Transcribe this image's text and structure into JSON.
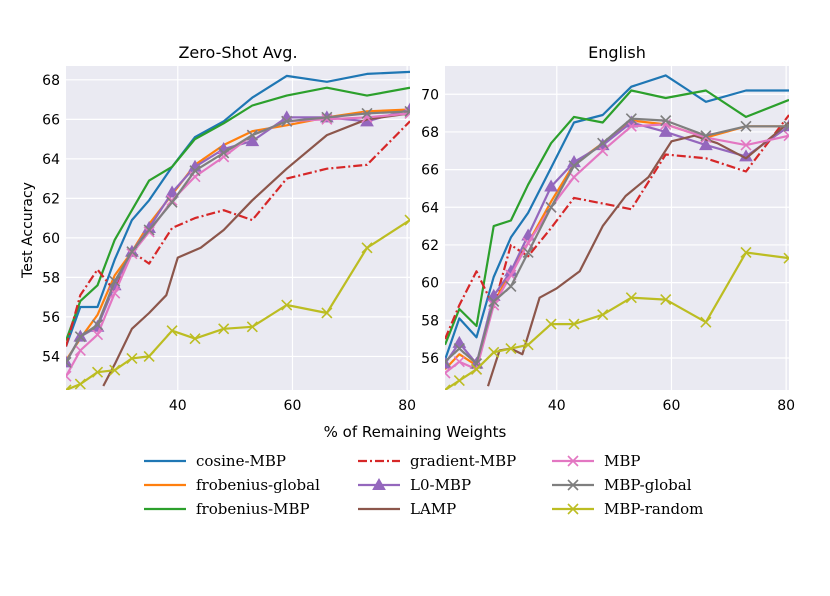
{
  "chart_data": [
    {
      "type": "line",
      "title": "Zero-Shot Avg.",
      "xlabel": "",
      "ylabel": "Test Accuracy",
      "xlim": [
        20.5,
        80.5
      ],
      "ylim": [
        52.3,
        68.7
      ],
      "xticks": [
        40,
        60,
        80
      ],
      "yticks": [
        54,
        56,
        58,
        60,
        62,
        64,
        66,
        68
      ],
      "grid": true,
      "series": [
        {
          "name": "cosine-MBP",
          "x": [
            20.5,
            23,
            26,
            29,
            32,
            35,
            39,
            43,
            48,
            53,
            59,
            66,
            73,
            80.5
          ],
          "values": [
            54.5,
            56.5,
            56.5,
            58.9,
            60.9,
            61.9,
            63.6,
            65.1,
            65.9,
            67.1,
            68.2,
            67.9,
            68.3,
            68.4
          ]
        },
        {
          "name": "frobenius-global",
          "x": [
            20.5,
            23,
            26,
            29,
            32,
            35,
            39,
            43,
            48,
            53,
            59,
            66,
            73,
            80.5
          ],
          "values": [
            53.8,
            54.9,
            56.1,
            58.1,
            59.3,
            60.7,
            62.2,
            63.7,
            64.7,
            65.4,
            65.7,
            66.1,
            66.4,
            66.5
          ]
        },
        {
          "name": "frobenius-MBP",
          "x": [
            20.5,
            23,
            26,
            29,
            32,
            35,
            39,
            43,
            48,
            53,
            59,
            66,
            73,
            80.5
          ],
          "values": [
            54.8,
            56.8,
            57.6,
            59.9,
            61.4,
            62.9,
            63.6,
            65.0,
            65.8,
            66.7,
            67.2,
            67.6,
            67.2,
            67.6
          ]
        },
        {
          "name": "gradient-MBP",
          "x": [
            20.5,
            23,
            26,
            29,
            32,
            35,
            39,
            43,
            48,
            53,
            59,
            66,
            73,
            80.5
          ],
          "values": [
            54.5,
            57.1,
            58.4,
            57.3,
            59.3,
            58.7,
            60.5,
            61.0,
            61.4,
            60.9,
            63.0,
            63.5,
            63.7,
            65.9
          ]
        },
        {
          "name": "L0-MBP",
          "x": [
            20.5,
            23,
            26,
            29,
            32,
            35,
            39,
            43,
            48,
            53,
            59,
            66,
            73,
            80.5
          ],
          "values": [
            53.7,
            55.0,
            55.5,
            57.6,
            59.3,
            60.5,
            62.3,
            63.6,
            64.5,
            64.9,
            66.1,
            66.1,
            65.9,
            66.5
          ]
        },
        {
          "name": "LAMP",
          "x": [
            27,
            29,
            32,
            35,
            38,
            40,
            44,
            48,
            53,
            59,
            66,
            73,
            80.5
          ],
          "values": [
            52.5,
            53.6,
            55.4,
            56.2,
            57.1,
            59.0,
            59.5,
            60.4,
            61.9,
            63.5,
            65.2,
            66.0,
            66.3
          ]
        },
        {
          "name": "MBP",
          "x": [
            20.5,
            23,
            26,
            29,
            32,
            35,
            39,
            43,
            48,
            53,
            59,
            66,
            73,
            80.5
          ],
          "values": [
            53.0,
            54.3,
            55.1,
            57.2,
            59.2,
            60.3,
            61.9,
            63.1,
            64.1,
            65.2,
            65.9,
            66.0,
            66.1,
            66.3
          ]
        },
        {
          "name": "MBP-global",
          "x": [
            20.5,
            23,
            26,
            29,
            32,
            35,
            39,
            43,
            48,
            53,
            59,
            66,
            73,
            80.5
          ],
          "values": [
            53.7,
            55.0,
            55.6,
            57.8,
            59.3,
            60.4,
            61.8,
            63.4,
            64.3,
            65.2,
            65.9,
            66.1,
            66.3,
            66.4
          ]
        },
        {
          "name": "MBP-random",
          "x": [
            20.5,
            23,
            26,
            29,
            32,
            35,
            39,
            43,
            48,
            53,
            59,
            66,
            73,
            80.5
          ],
          "values": [
            52.3,
            52.6,
            53.2,
            53.3,
            53.9,
            54.0,
            55.3,
            54.9,
            55.4,
            55.5,
            56.6,
            56.2,
            59.5,
            60.9
          ]
        }
      ]
    },
    {
      "type": "line",
      "title": "English",
      "xlabel": "",
      "ylabel": "",
      "xlim": [
        20.5,
        80.5
      ],
      "ylim": [
        54.3,
        71.5
      ],
      "xticks": [
        40,
        60,
        80
      ],
      "yticks": [
        56,
        58,
        60,
        62,
        64,
        66,
        68,
        70
      ],
      "grid": true,
      "series": [
        {
          "name": "cosine-MBP",
          "x": [
            20.5,
            23,
            26,
            29,
            32,
            35,
            39,
            43,
            48,
            53,
            59,
            63,
            66,
            73,
            80.5
          ],
          "values": [
            55.9,
            58.1,
            57.1,
            60.3,
            62.4,
            63.7,
            66.1,
            68.5,
            68.9,
            70.4,
            71.0,
            70.2,
            69.6,
            70.2,
            70.2
          ]
        },
        {
          "name": "frobenius-global",
          "x": [
            20.5,
            23,
            26,
            29,
            32,
            35,
            39,
            43,
            48,
            53,
            59,
            66,
            73,
            80.5
          ],
          "values": [
            55.4,
            56.2,
            55.6,
            58.9,
            60.6,
            62.1,
            64.3,
            66.3,
            67.4,
            68.6,
            68.4,
            67.7,
            68.3,
            68.3
          ]
        },
        {
          "name": "frobenius-MBP",
          "x": [
            20.5,
            23,
            26,
            29,
            32,
            35,
            39,
            43,
            48,
            53,
            59,
            66,
            73,
            80.5
          ],
          "values": [
            56.7,
            58.6,
            57.7,
            63.0,
            63.3,
            65.2,
            67.4,
            68.8,
            68.5,
            70.2,
            69.8,
            70.2,
            68.8,
            69.7
          ]
        },
        {
          "name": "gradient-MBP",
          "x": [
            20.5,
            23,
            26,
            29,
            32,
            35,
            39,
            43,
            48,
            53,
            59,
            66,
            73,
            80.5
          ],
          "values": [
            57.0,
            58.8,
            60.6,
            58.7,
            62.0,
            61.4,
            62.9,
            64.5,
            64.2,
            63.9,
            66.8,
            66.6,
            65.9,
            68.9
          ]
        },
        {
          "name": "L0-MBP",
          "x": [
            20.5,
            23,
            26,
            29,
            32,
            35,
            39,
            43,
            48,
            53,
            59,
            66,
            73,
            80.5
          ],
          "values": [
            55.7,
            56.8,
            55.7,
            59.3,
            60.6,
            62.5,
            65.1,
            66.4,
            67.3,
            68.5,
            68.0,
            67.3,
            66.7,
            68.3
          ]
        },
        {
          "name": "LAMP",
          "x": [
            28,
            30,
            32,
            34,
            37,
            40,
            44,
            48,
            52,
            56,
            60,
            64,
            68,
            73,
            80.5
          ],
          "values": [
            54.5,
            56.4,
            56.5,
            56.2,
            59.2,
            59.7,
            60.6,
            63.0,
            64.6,
            65.6,
            67.5,
            67.8,
            67.4,
            66.6,
            68.5
          ]
        },
        {
          "name": "MBP",
          "x": [
            20.5,
            23,
            26,
            29,
            32,
            35,
            39,
            43,
            48,
            53,
            59,
            66,
            73,
            80.5
          ],
          "values": [
            55.2,
            55.8,
            55.4,
            58.8,
            60.4,
            62.1,
            64.0,
            65.6,
            67.0,
            68.3,
            68.4,
            67.7,
            67.3,
            67.8
          ]
        },
        {
          "name": "MBP-global",
          "x": [
            20.5,
            23,
            26,
            29,
            32,
            35,
            39,
            43,
            48,
            53,
            59,
            66,
            73,
            80.5
          ],
          "values": [
            55.8,
            56.5,
            55.7,
            59.0,
            59.8,
            61.6,
            64.0,
            66.2,
            67.4,
            68.7,
            68.6,
            67.8,
            68.3,
            68.3
          ]
        },
        {
          "name": "MBP-random",
          "x": [
            20.5,
            23,
            26,
            29,
            32,
            35,
            39,
            43,
            48,
            53,
            59,
            66,
            73,
            80.5
          ],
          "values": [
            54.3,
            54.8,
            55.4,
            56.3,
            56.5,
            56.7,
            57.8,
            57.8,
            58.3,
            59.2,
            59.1,
            57.9,
            61.6,
            61.3
          ]
        }
      ]
    }
  ],
  "shared": {
    "xlabel": "% of Remaining Weights",
    "legend_position": "bottom-center"
  },
  "styles": {
    "cosine-MBP": {
      "color": "#1f77b4",
      "dash": "solid",
      "marker": "none"
    },
    "frobenius-global": {
      "color": "#ff7f0e",
      "dash": "solid",
      "marker": "none"
    },
    "frobenius-MBP": {
      "color": "#2ca02c",
      "dash": "solid",
      "marker": "none"
    },
    "gradient-MBP": {
      "color": "#d62728",
      "dash": "dashdot",
      "marker": "none"
    },
    "L0-MBP": {
      "color": "#9467bd",
      "dash": "solid",
      "marker": "triangle"
    },
    "LAMP": {
      "color": "#8c564b",
      "dash": "solid",
      "marker": "none"
    },
    "MBP": {
      "color": "#e377c2",
      "dash": "solid",
      "marker": "x"
    },
    "MBP-global": {
      "color": "#7f7f7f",
      "dash": "solid",
      "marker": "x"
    },
    "MBP-random": {
      "color": "#bcbd22",
      "dash": "solid",
      "marker": "x"
    }
  },
  "legend": [
    [
      "cosine-MBP",
      "gradient-MBP",
      "MBP"
    ],
    [
      "frobenius-global",
      "L0-MBP",
      "MBP-global"
    ],
    [
      "frobenius-MBP",
      "LAMP",
      "MBP-random"
    ]
  ]
}
